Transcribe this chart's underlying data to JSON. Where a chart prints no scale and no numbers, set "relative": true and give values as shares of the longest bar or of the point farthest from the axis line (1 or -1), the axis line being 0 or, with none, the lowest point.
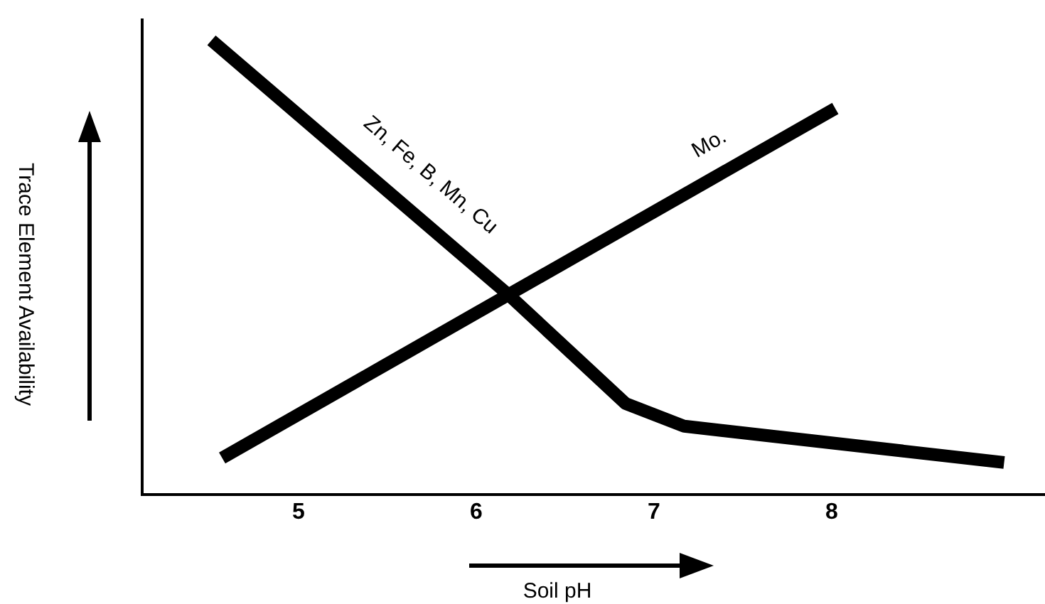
{
  "chart_data": {
    "type": "line",
    "xlabel": "Soil pH",
    "ylabel": "Trace Element Availability",
    "relative": true,
    "xlim": [
      4.12,
      9.2
    ],
    "xticks": [
      5,
      6,
      7,
      8
    ],
    "grid": false,
    "legend": false,
    "marker": "none",
    "line_style": "solid",
    "series": [
      {
        "name": "Zn, Fe, B, Mn, Cu",
        "color": "#000000",
        "x": [
          4.51,
          6.18,
          6.84,
          7.17,
          8.97
        ],
        "values": [
          1,
          0.44,
          0.2,
          0.15,
          0.07
        ]
      },
      {
        "name": "Mo.",
        "color": "#000000",
        "x": [
          4.57,
          8.02
        ],
        "values": [
          0.08,
          0.85
        ]
      }
    ]
  }
}
